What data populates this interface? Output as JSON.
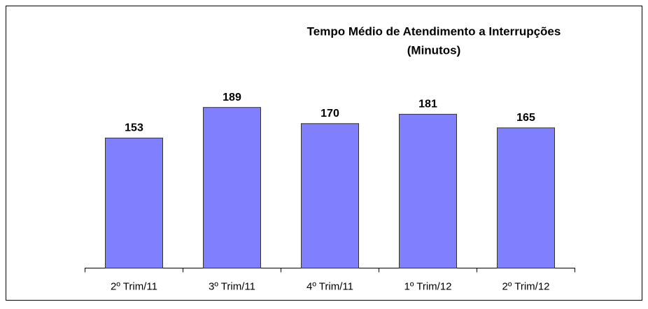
{
  "chart_data": {
    "type": "bar",
    "title": "Tempo Médio de Atendimento a Interrupções",
    "subtitle": "(Minutos)",
    "categories": [
      "2º Trim/11",
      "3º Trim/11",
      "4º Trim/11",
      "1º Trim/12",
      "2º Trim/12"
    ],
    "values": [
      153,
      189,
      170,
      181,
      165
    ],
    "color": "#8080ff"
  }
}
